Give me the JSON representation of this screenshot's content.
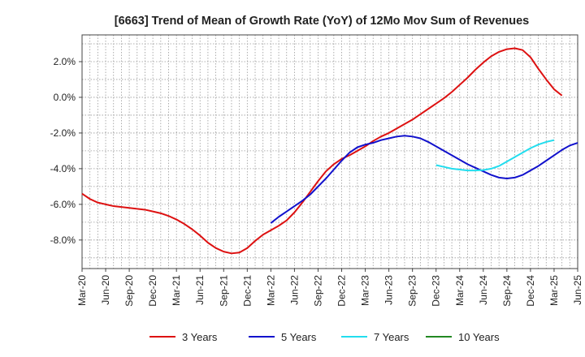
{
  "chart_data": {
    "type": "line",
    "title": "[6663]  Trend of Mean of Growth Rate (YoY) of 12Mo Mov Sum of Revenues",
    "xlabel": "",
    "ylabel": "",
    "ylim": [
      -9.6,
      3.5
    ],
    "yticks": [
      -8,
      -6,
      -4,
      -2,
      0,
      2
    ],
    "ytick_labels": [
      "-8.0%",
      "-6.0%",
      "-4.0%",
      "-2.0%",
      "0.0%",
      "2.0%"
    ],
    "x_start": "Mar-20",
    "x_ticks": [
      "Mar-20",
      "Jun-20",
      "Sep-20",
      "Dec-20",
      "Mar-21",
      "Jun-21",
      "Sep-21",
      "Dec-21",
      "Mar-22",
      "Jun-22",
      "Sep-22",
      "Dec-22",
      "Mar-23",
      "Jun-23",
      "Sep-23",
      "Dec-23",
      "Mar-24",
      "Jun-24",
      "Sep-24",
      "Dec-24",
      "Mar-25",
      "Jun-25"
    ],
    "grid": true,
    "legend_position": "bottom",
    "series": [
      {
        "name": "3 Years",
        "color": "#dd1111",
        "start_index": 0,
        "values": [
          -5.4,
          -5.7,
          -5.9,
          -6.0,
          -6.1,
          -6.15,
          -6.2,
          -6.25,
          -6.3,
          -6.4,
          -6.5,
          -6.65,
          -6.85,
          -7.1,
          -7.4,
          -7.75,
          -8.15,
          -8.45,
          -8.65,
          -8.75,
          -8.7,
          -8.45,
          -8.05,
          -7.7,
          -7.45,
          -7.2,
          -6.9,
          -6.45,
          -5.9,
          -5.3,
          -4.7,
          -4.15,
          -3.75,
          -3.45,
          -3.25,
          -3.0,
          -2.75,
          -2.45,
          -2.2,
          -2.0,
          -1.75,
          -1.5,
          -1.25,
          -0.95,
          -0.65,
          -0.35,
          -0.05,
          0.3,
          0.7,
          1.1,
          1.55,
          1.95,
          2.3,
          2.55,
          2.7,
          2.75,
          2.65,
          2.25,
          1.6,
          1.0,
          0.45,
          0.1
        ]
      },
      {
        "name": "5 Years",
        "color": "#1111cc",
        "start_index": 24,
        "values": [
          -7.05,
          -6.7,
          -6.4,
          -6.1,
          -5.8,
          -5.45,
          -5.0,
          -4.55,
          -4.05,
          -3.55,
          -3.1,
          -2.8,
          -2.65,
          -2.55,
          -2.4,
          -2.3,
          -2.2,
          -2.15,
          -2.2,
          -2.3,
          -2.5,
          -2.75,
          -3.0,
          -3.25,
          -3.5,
          -3.75,
          -3.95,
          -4.15,
          -4.35,
          -4.5,
          -4.55,
          -4.5,
          -4.35,
          -4.1,
          -3.85,
          -3.55,
          -3.25,
          -2.95,
          -2.7,
          -2.55
        ]
      },
      {
        "name": "7 Years",
        "color": "#22ddee",
        "start_index": 45,
        "values": [
          -3.8,
          -3.9,
          -4.0,
          -4.05,
          -4.1,
          -4.1,
          -4.08,
          -4.0,
          -3.85,
          -3.6,
          -3.35,
          -3.1,
          -2.85,
          -2.65,
          -2.5,
          -2.4
        ]
      },
      {
        "name": "10 Years",
        "color": "#228822",
        "start_index": 0,
        "values": []
      }
    ]
  }
}
